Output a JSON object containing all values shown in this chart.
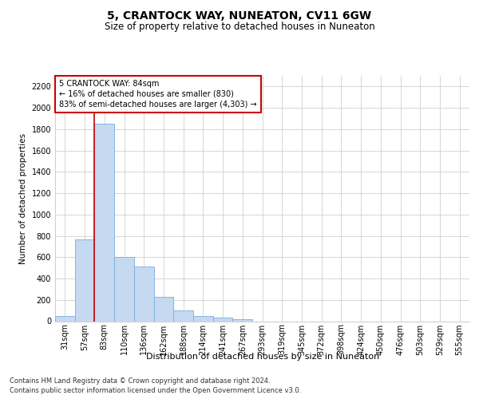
{
  "title1": "5, CRANTOCK WAY, NUNEATON, CV11 6GW",
  "title2": "Size of property relative to detached houses in Nuneaton",
  "xlabel": "Distribution of detached houses by size in Nuneaton",
  "ylabel": "Number of detached properties",
  "categories": [
    "31sqm",
    "57sqm",
    "83sqm",
    "110sqm",
    "136sqm",
    "162sqm",
    "188sqm",
    "214sqm",
    "241sqm",
    "267sqm",
    "293sqm",
    "319sqm",
    "345sqm",
    "372sqm",
    "398sqm",
    "424sqm",
    "450sqm",
    "476sqm",
    "503sqm",
    "529sqm",
    "555sqm"
  ],
  "values": [
    50,
    770,
    1850,
    600,
    510,
    230,
    100,
    50,
    30,
    15,
    0,
    0,
    0,
    0,
    0,
    0,
    0,
    0,
    0,
    0,
    0
  ],
  "bar_color": "#c5d9f0",
  "bar_edge_color": "#7aadda",
  "annotation_text": "5 CRANTOCK WAY: 84sqm\n← 16% of detached houses are smaller (830)\n83% of semi-detached houses are larger (4,303) →",
  "annotation_box_color": "#ffffff",
  "annotation_box_edge_color": "#cc0000",
  "vline_color": "#cc0000",
  "vline_x": 1.5,
  "ylim": [
    0,
    2300
  ],
  "yticks": [
    0,
    200,
    400,
    600,
    800,
    1000,
    1200,
    1400,
    1600,
    1800,
    2000,
    2200
  ],
  "footer_line1": "Contains HM Land Registry data © Crown copyright and database right 2024.",
  "footer_line2": "Contains public sector information licensed under the Open Government Licence v3.0.",
  "fig_bg": "#ffffff",
  "axes_bg": "#ffffff",
  "grid_color": "#d0d0d0",
  "title1_fontsize": 10,
  "title2_fontsize": 8.5,
  "ylabel_fontsize": 7.5,
  "xlabel_fontsize": 8,
  "tick_fontsize": 7,
  "footer_fontsize": 6,
  "annot_fontsize": 7
}
